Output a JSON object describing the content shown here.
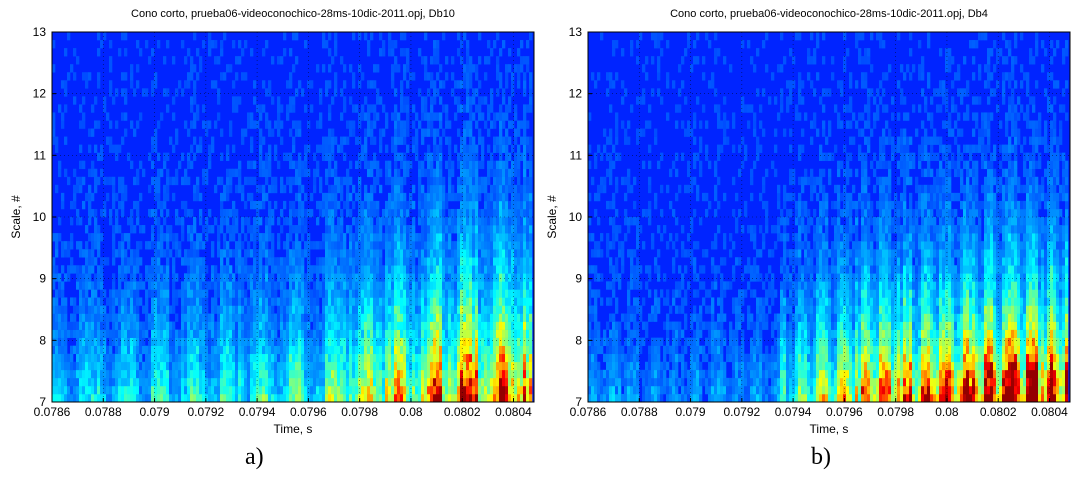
{
  "chart_data": [
    {
      "type": "heatmap",
      "title": "Cono corto, prueba06-videoconochico-28ms-10dic-2011.opj, Db10",
      "xlabel": "Time, s",
      "ylabel": "Scale, #",
      "xlim": [
        0.0786,
        0.08048
      ],
      "ylim": [
        7,
        13
      ],
      "x_ticks": [
        "0.0786",
        "0.0788",
        "0.079",
        "0.0792",
        "0.0794",
        "0.0796",
        "0.0798",
        "0.08",
        "0.0802",
        "0.0804"
      ],
      "y_ticks": [
        "7",
        "8",
        "9",
        "10",
        "11",
        "12",
        "13"
      ],
      "grid": true,
      "colormap": "jet",
      "caption": "a)"
    },
    {
      "type": "heatmap",
      "title": "Cono corto, prueba06-videoconochico-28ms-10dic-2011.opj, Db4",
      "xlabel": "Time, s",
      "ylabel": "Scale, #",
      "xlim": [
        0.0786,
        0.08048
      ],
      "ylim": [
        7,
        13
      ],
      "x_ticks": [
        "0.0786",
        "0.0788",
        "0.079",
        "0.0792",
        "0.0794",
        "0.0796",
        "0.0798",
        "0.08",
        "0.0802",
        "0.0804"
      ],
      "y_ticks": [
        "7",
        "8",
        "9",
        "10",
        "11",
        "12",
        "13"
      ],
      "grid": true,
      "colormap": "jet",
      "caption": "b)"
    }
  ]
}
